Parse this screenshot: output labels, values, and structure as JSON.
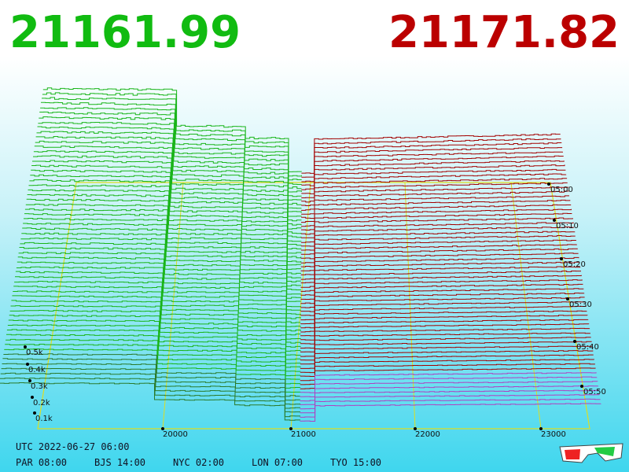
{
  "bid_price": "21161.99",
  "ask_price": "21171.82",
  "depth_labels": [
    "0.1k",
    "0.2k",
    "0.3k",
    "0.4k",
    "0.5k"
  ],
  "price_labels": [
    "20000",
    "21000",
    "22000",
    "23000"
  ],
  "time_labels": [
    "05:00",
    "05:10",
    "05:20",
    "05:30",
    "05:40",
    "05:50"
  ],
  "utc": "UTC 2022-06-27 06:00",
  "cities": [
    "PAR 08:00",
    "BJS 14:00",
    "NYC 02:00",
    "LON 07:00",
    "TYO 15:00"
  ]
}
